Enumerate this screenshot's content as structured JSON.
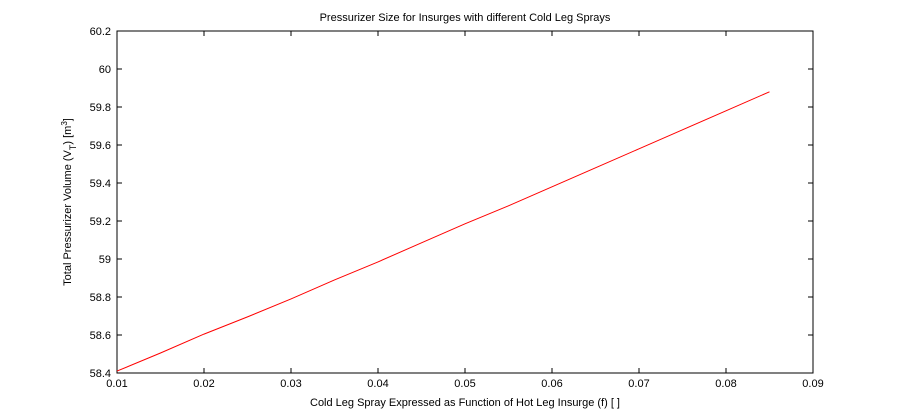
{
  "chart_data": {
    "type": "line",
    "title": "Pressurizer Size for Insurges with different Cold Leg Sprays",
    "xlabel": "Cold Leg Spray Expressed as Function of Hot Leg Insurge (f) [ ]",
    "ylabel": {
      "prefix": "Total Pressurizer Volume (V",
      "sub": "T",
      "middle": ") [m",
      "sup": "3",
      "suffix": "]"
    },
    "xlim": [
      0.01,
      0.09
    ],
    "ylim": [
      58.4,
      60.2
    ],
    "xticks": [
      "0.01",
      "0.02",
      "0.03",
      "0.04",
      "0.05",
      "0.06",
      "0.07",
      "0.08",
      "0.09"
    ],
    "yticks": [
      "58.4",
      "58.6",
      "58.8",
      "59",
      "59.2",
      "59.4",
      "59.6",
      "59.8",
      "60",
      "60.2"
    ],
    "grid": false,
    "series": [
      {
        "color": "#ff0000",
        "x": [
          0.01,
          0.015,
          0.02,
          0.025,
          0.03,
          0.035,
          0.04,
          0.045,
          0.05,
          0.055,
          0.06,
          0.065,
          0.07,
          0.075,
          0.08,
          0.085
        ],
        "y": [
          58.41,
          58.505,
          58.605,
          58.695,
          58.79,
          58.89,
          58.985,
          59.085,
          59.185,
          59.28,
          59.38,
          59.48,
          59.58,
          59.68,
          59.78,
          59.88
        ]
      }
    ]
  }
}
